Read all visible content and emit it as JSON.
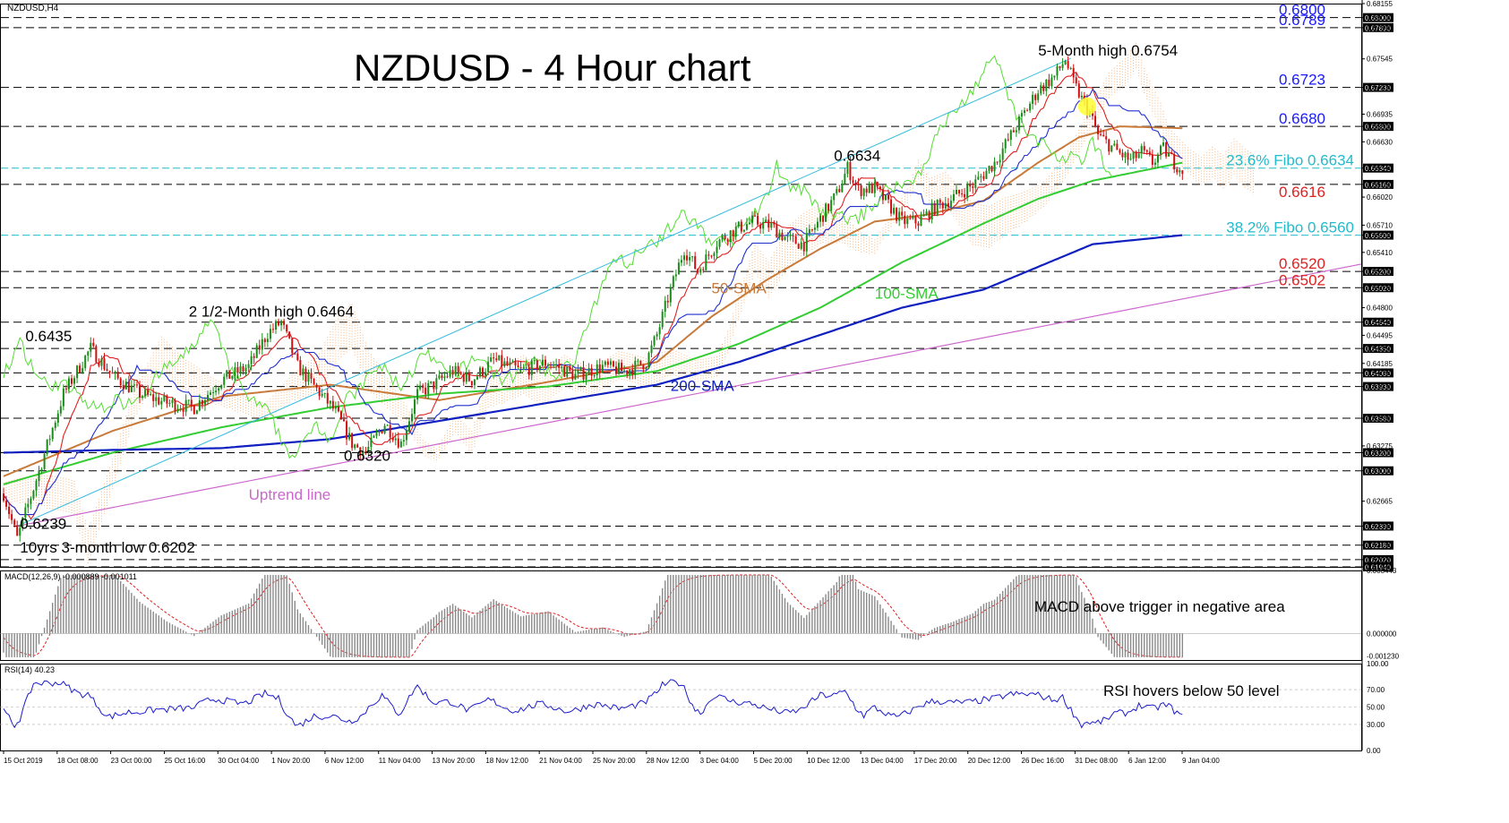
{
  "window_title": "NZDUSD,H4",
  "chart_title": "NZDUSD - 4 Hour chart",
  "colors": {
    "price_up": "#1a8c1a",
    "price_down": "#d01010",
    "sma50": "#c87a3a",
    "sma100": "#33cc33",
    "sma200": "#1020c0",
    "tenkan": "#e02020",
    "kijun": "#2030d0",
    "chikou": "#55dd33",
    "cloud": "#f4a460",
    "channel": "#33bbdd",
    "uptrend": "#cc66cc",
    "fibo": "#22bbcc",
    "level_blue": "#1a1aff",
    "level_red": "#e02020",
    "rsi": "#1a1acc"
  },
  "chart_data": [
    {
      "type": "candlestick",
      "title": "NZDUSD - 4 Hour chart",
      "ylim": [
        0.6194,
        0.68155
      ],
      "y_ticks": [
        "0.68155",
        "0.68000",
        "0.67890",
        "0.67545",
        "0.67230",
        "0.66935",
        "0.66800",
        "0.66630",
        "0.66340",
        "0.66160",
        "0.66020",
        "0.65710",
        "0.65600",
        "0.65410",
        "0.65200",
        "0.65020",
        "0.64800",
        "0.64640",
        "0.64495",
        "0.64350",
        "0.64185",
        "0.64080",
        "0.63930",
        "0.63580",
        "0.63275",
        "0.63200",
        "0.63000",
        "0.62665",
        "0.62390",
        "0.62180",
        "0.62020",
        "0.61940"
      ],
      "x_ticks": [
        "15 Oct 2019",
        "18 Oct 08:00",
        "23 Oct 00:00",
        "25 Oct 16:00",
        "30 Oct 04:00",
        "1 Nov 20:00",
        "6 Nov 12:00",
        "11 Nov 04:00",
        "13 Nov 20:00",
        "18 Nov 12:00",
        "21 Nov 04:00",
        "25 Nov 20:00",
        "28 Nov 12:00",
        "3 Dec 04:00",
        "5 Dec 20:00",
        "10 Dec 12:00",
        "13 Dec 04:00",
        "17 Dec 20:00",
        "20 Dec 12:00",
        "26 Dec 16:00",
        "31 Dec 08:00",
        "6 Jan 12:00",
        "9 Jan 04:00"
      ],
      "price_path": [
        [
          0,
          0.6275
        ],
        [
          5,
          0.6225
        ],
        [
          12,
          0.629
        ],
        [
          22,
          0.6385
        ],
        [
          32,
          0.6435
        ],
        [
          40,
          0.6405
        ],
        [
          50,
          0.6385
        ],
        [
          60,
          0.6375
        ],
        [
          70,
          0.637
        ],
        [
          80,
          0.64
        ],
        [
          90,
          0.6415
        ],
        [
          97,
          0.6452
        ],
        [
          102,
          0.6464
        ],
        [
          108,
          0.6415
        ],
        [
          115,
          0.639
        ],
        [
          122,
          0.6365
        ],
        [
          128,
          0.633
        ],
        [
          133,
          0.632
        ],
        [
          140,
          0.6352
        ],
        [
          146,
          0.633
        ],
        [
          152,
          0.6385
        ],
        [
          158,
          0.6395
        ],
        [
          165,
          0.641
        ],
        [
          172,
          0.64
        ],
        [
          180,
          0.6422
        ],
        [
          190,
          0.641
        ],
        [
          200,
          0.642
        ],
        [
          210,
          0.6405
        ],
        [
          220,
          0.6415
        ],
        [
          228,
          0.641
        ],
        [
          236,
          0.642
        ],
        [
          240,
          0.645
        ],
        [
          244,
          0.649
        ],
        [
          250,
          0.6545
        ],
        [
          255,
          0.652
        ],
        [
          262,
          0.6552
        ],
        [
          268,
          0.6565
        ],
        [
          275,
          0.6575
        ],
        [
          282,
          0.657
        ],
        [
          288,
          0.6555
        ],
        [
          294,
          0.655
        ],
        [
          300,
          0.6578
        ],
        [
          306,
          0.6605
        ],
        [
          310,
          0.6634
        ],
        [
          314,
          0.661
        ],
        [
          320,
          0.6612
        ],
        [
          326,
          0.659
        ],
        [
          330,
          0.6575
        ],
        [
          336,
          0.6575
        ],
        [
          342,
          0.659
        ],
        [
          348,
          0.66
        ],
        [
          356,
          0.6615
        ],
        [
          364,
          0.664
        ],
        [
          372,
          0.668
        ],
        [
          380,
          0.672
        ],
        [
          386,
          0.6735
        ],
        [
          390,
          0.6754
        ],
        [
          393,
          0.6728
        ],
        [
          396,
          0.671
        ],
        [
          399,
          0.6695
        ],
        [
          402,
          0.667
        ],
        [
          406,
          0.666
        ],
        [
          410,
          0.665
        ],
        [
          414,
          0.6642
        ],
        [
          418,
          0.6652
        ],
        [
          422,
          0.664
        ],
        [
          426,
          0.6655
        ],
        [
          430,
          0.664
        ],
        [
          433,
          0.6632
        ]
      ],
      "series": [
        {
          "name": "50-SMA",
          "values": [
            [
              0,
              0.6294
            ],
            [
              40,
              0.6344
            ],
            [
              80,
              0.6382
            ],
            [
              120,
              0.6395
            ],
            [
              160,
              0.6378
            ],
            [
              200,
              0.6398
            ],
            [
              240,
              0.642
            ],
            [
              260,
              0.647
            ],
            [
              280,
              0.651
            ],
            [
              300,
              0.6545
            ],
            [
              320,
              0.6575
            ],
            [
              340,
              0.6583
            ],
            [
              360,
              0.6598
            ],
            [
              380,
              0.664
            ],
            [
              395,
              0.6668
            ],
            [
              410,
              0.668
            ],
            [
              433,
              0.6678
            ]
          ]
        },
        {
          "name": "100-SMA",
          "values": [
            [
              0,
              0.6285
            ],
            [
              40,
              0.632
            ],
            [
              80,
              0.6348
            ],
            [
              120,
              0.637
            ],
            [
              160,
              0.6385
            ],
            [
              200,
              0.6393
            ],
            [
              240,
              0.641
            ],
            [
              270,
              0.644
            ],
            [
              300,
              0.648
            ],
            [
              330,
              0.653
            ],
            [
              360,
              0.6573
            ],
            [
              380,
              0.66
            ],
            [
              400,
              0.662
            ],
            [
              433,
              0.664
            ]
          ]
        },
        {
          "name": "200-SMA",
          "values": [
            [
              0,
              0.632
            ],
            [
              40,
              0.6323
            ],
            [
              80,
              0.6325
            ],
            [
              120,
              0.6335
            ],
            [
              160,
              0.6355
            ],
            [
              200,
              0.6375
            ],
            [
              240,
              0.6395
            ],
            [
              270,
              0.642
            ],
            [
              300,
              0.645
            ],
            [
              330,
              0.648
            ],
            [
              360,
              0.65
            ],
            [
              380,
              0.6525
            ],
            [
              400,
              0.655
            ],
            [
              433,
              0.656
            ]
          ]
        }
      ],
      "channel_upper": [
        [
          5,
          0.6239
        ],
        [
          392,
          0.6755
        ]
      ],
      "uptrend_line": [
        [
          5,
          0.6239
        ],
        [
          512,
          0.6528
        ]
      ],
      "levels": [
        {
          "price": 0.68,
          "label": "0.6800",
          "color": "#1a1aff",
          "style": "dashed"
        },
        {
          "price": 0.6789,
          "label": "0.6789",
          "color": "#1a1aff",
          "style": "dashed"
        },
        {
          "price": 0.6723,
          "label": "0.6723",
          "color": "#1a1aff",
          "style": "dashed"
        },
        {
          "price": 0.668,
          "label": "0.6680",
          "color": "#1a1aff",
          "style": "dashed"
        },
        {
          "price": 0.6634,
          "label": "23.6% Fibo 0.6634",
          "color": "#22bbcc",
          "style": "fibo"
        },
        {
          "price": 0.6616,
          "label": "0.6616",
          "color": "#e02020",
          "style": "dashed"
        },
        {
          "price": 0.656,
          "label": "38.2% Fibo 0.6560",
          "color": "#22bbcc",
          "style": "fibo"
        },
        {
          "price": 0.652,
          "label": "0.6520",
          "color": "#e02020",
          "style": "dashed"
        },
        {
          "price": 0.6502,
          "label": "0.6502",
          "color": "#e02020",
          "style": "dashed"
        },
        {
          "price": 0.6464,
          "label": "",
          "color": "#000000",
          "style": "dashed"
        },
        {
          "price": 0.6435,
          "label": "",
          "color": "#000000",
          "style": "dashed"
        },
        {
          "price": 0.6408,
          "label": "",
          "color": "#000000",
          "style": "dashed"
        },
        {
          "price": 0.6393,
          "label": "",
          "color": "#000000",
          "style": "dashed"
        },
        {
          "price": 0.6358,
          "label": "",
          "color": "#000000",
          "style": "dashed"
        },
        {
          "price": 0.632,
          "label": "",
          "color": "#000000",
          "style": "dashed"
        },
        {
          "price": 0.63,
          "label": "",
          "color": "#000000",
          "style": "dashed"
        },
        {
          "price": 0.6239,
          "label": "",
          "color": "#000000",
          "style": "dashed"
        },
        {
          "price": 0.6218,
          "label": "",
          "color": "#000000",
          "style": "dashed"
        },
        {
          "price": 0.6202,
          "label": "",
          "color": "#000000",
          "style": "dashed"
        },
        {
          "price": 0.6194,
          "label": "",
          "color": "#000000",
          "style": "dashed"
        }
      ],
      "annotations": [
        {
          "text": "5-Month high 0.6754",
          "bar": 380,
          "price": 0.6758
        },
        {
          "text": "0.6634",
          "bar": 305,
          "price": 0.6642
        },
        {
          "text": "2 1/2-Month high 0.6464",
          "bar": 68,
          "price": 0.647
        },
        {
          "text": "0.6435",
          "bar": 8,
          "price": 0.6443
        },
        {
          "text": "0.6320",
          "bar": 125,
          "price": 0.6311
        },
        {
          "text": "Uptrend line",
          "bar": 90,
          "price": 0.6268
        },
        {
          "text": "0.6239",
          "bar": 6,
          "price": 0.6236
        },
        {
          "text": "10yrs 3-month low 0.6202",
          "bar": 6,
          "price": 0.621
        },
        {
          "text": "50-SMA",
          "bar": 260,
          "price": 0.6496
        },
        {
          "text": "100-SMA",
          "bar": 320,
          "price": 0.649
        },
        {
          "text": "200-SMA",
          "bar": 245,
          "price": 0.6388
        }
      ]
    },
    {
      "type": "bar",
      "title": "MACD(12,26,9) -0.000889 -0.001011",
      "ylim": [
        -0.00145,
        0.003443
      ],
      "y_ticks": [
        "0.003443",
        "0.000000",
        "-0.001230"
      ],
      "annotation": "MACD above trigger in negative area"
    },
    {
      "type": "line",
      "title": "RSI(14) 40.23",
      "ylim": [
        0,
        100
      ],
      "y_ticks": [
        "100.00",
        "70.00",
        "50.00",
        "30.00",
        "0.00"
      ],
      "annotation": "RSI hovers below 50 level"
    }
  ]
}
